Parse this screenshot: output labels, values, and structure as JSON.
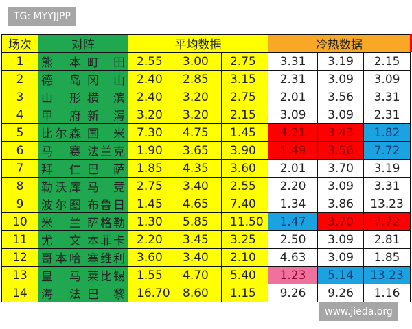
{
  "watermark_top": "TG: MYYJJPP",
  "watermark_bottom": "www.jieda.org",
  "headers": {
    "round": "场次",
    "match": "对阵",
    "avg": "平均数据",
    "hotcold": "冷热数据"
  },
  "colors": {
    "header_yellow": "#ffff00",
    "team_green": "#1fa84f",
    "hotcold_orange": "#f9a825",
    "red": "#ff0000",
    "blue": "#1aa3e0",
    "pink": "#f0709e"
  },
  "rows": [
    {
      "n": "1",
      "home": "熊本",
      "away": "町田",
      "avg": [
        "2.55",
        "3.00",
        "2.75"
      ],
      "hc": [
        "3.31",
        "3.19",
        "2.15"
      ],
      "hl": [
        "",
        "",
        ""
      ]
    },
    {
      "n": "2",
      "home": "德岛",
      "away": "冈山",
      "avg": [
        "2.40",
        "2.85",
        "3.15"
      ],
      "hc": [
        "2.31",
        "3.09",
        "3.09"
      ],
      "hl": [
        "",
        "",
        ""
      ]
    },
    {
      "n": "3",
      "home": "山形",
      "away": "横滨",
      "avg": [
        "2.40",
        "3.20",
        "2.75"
      ],
      "hc": [
        "2.01",
        "3.56",
        "3.31"
      ],
      "hl": [
        "",
        "",
        ""
      ]
    },
    {
      "n": "4",
      "home": "甲府",
      "away": "新泻",
      "avg": [
        "3.20",
        "3.20",
        "2.15"
      ],
      "hc": [
        "3.09",
        "3.09",
        "2.31"
      ],
      "hl": [
        "",
        "",
        ""
      ]
    },
    {
      "n": "5",
      "home": "比尔森",
      "away": "国米",
      "avg": [
        "7.30",
        "4.75",
        "1.45"
      ],
      "hc": [
        "4.21",
        "3.43",
        "1.82"
      ],
      "hl": [
        "red",
        "red",
        "blue"
      ]
    },
    {
      "n": "6",
      "home": "马赛",
      "away": "法兰克",
      "avg": [
        "1.90",
        "3.65",
        "3.90"
      ],
      "hc": [
        "1.49",
        "3.56",
        "7.72"
      ],
      "hl": [
        "red",
        "red",
        "blue"
      ]
    },
    {
      "n": "7",
      "home": "拜仁",
      "away": "巴萨",
      "avg": [
        "1.85",
        "4.35",
        "3.60"
      ],
      "hc": [
        "2.01",
        "3.70",
        "3.19"
      ],
      "hl": [
        "",
        "",
        ""
      ]
    },
    {
      "n": "8",
      "home": "勒沃库",
      "away": "马竞",
      "avg": [
        "2.75",
        "3.40",
        "2.55"
      ],
      "hc": [
        "2.20",
        "3.09",
        "3.31"
      ],
      "hl": [
        "",
        "",
        ""
      ]
    },
    {
      "n": "9",
      "home": "波尔图",
      "away": "布鲁日",
      "avg": [
        "1.45",
        "4.65",
        "7.40"
      ],
      "hc": [
        "1.34",
        "3.86",
        "13.23"
      ],
      "hl": [
        "",
        "",
        ""
      ]
    },
    {
      "n": "10",
      "home": "米兰",
      "away": "萨格勒",
      "avg": [
        "1.30",
        "5.85",
        "11.50"
      ],
      "hc": [
        "1.47",
        "3.70",
        "7.72"
      ],
      "hl": [
        "blue",
        "red",
        "red"
      ]
    },
    {
      "n": "11",
      "home": "尤文",
      "away": "本菲卡",
      "avg": [
        "2.20",
        "3.45",
        "3.25"
      ],
      "hc": [
        "2.50",
        "3.09",
        "2.81"
      ],
      "hl": [
        "",
        "",
        ""
      ]
    },
    {
      "n": "12",
      "home": "哥本哈",
      "away": "塞维利",
      "avg": [
        "3.60",
        "3.40",
        "2.10"
      ],
      "hc": [
        "4.63",
        "3.09",
        "1.85"
      ],
      "hl": [
        "",
        "",
        ""
      ]
    },
    {
      "n": "13",
      "home": "皇马",
      "away": "莱比锡",
      "avg": [
        "1.55",
        "4.70",
        "5.40"
      ],
      "hc": [
        "1.23",
        "5.14",
        "13.23"
      ],
      "hl": [
        "pink",
        "blue",
        "blue"
      ]
    },
    {
      "n": "14",
      "home": "海法",
      "away": "巴黎",
      "avg": [
        "16.70",
        "8.60",
        "1.15"
      ],
      "hc": [
        "9.26",
        "9.26",
        "1.16"
      ],
      "hl": [
        "",
        "",
        ""
      ]
    }
  ]
}
